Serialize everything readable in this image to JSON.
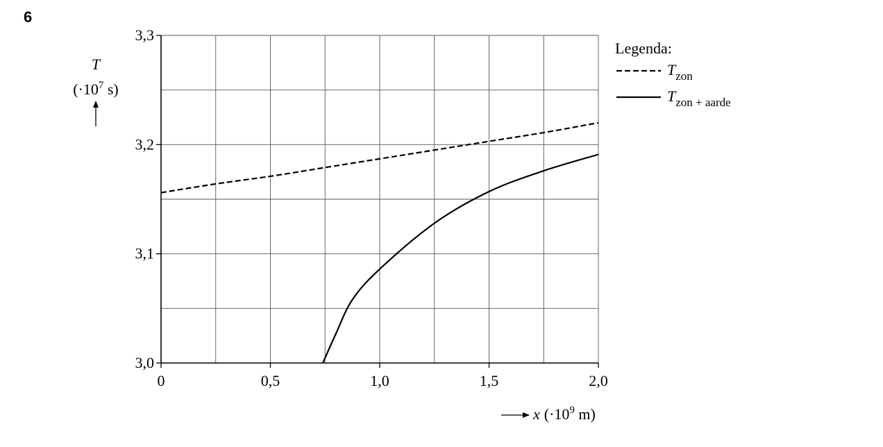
{
  "question_number": "6",
  "chart_data": {
    "type": "line",
    "y_label": {
      "symbol": "T",
      "prefix": "(·10",
      "exponent": "7",
      "unit": " s)"
    },
    "x_label": {
      "symbol": "x",
      "prefix": "(·10",
      "exponent": "9",
      "unit": " m)"
    },
    "legend_title": "Legenda:",
    "xlim": [
      0,
      2.0
    ],
    "ylim": [
      3.0,
      3.3
    ],
    "xticks": [
      0,
      {
        "value": 0.25,
        "label": null
      },
      {
        "value": 0.5,
        "label": "0,5"
      },
      {
        "value": 0.75,
        "label": null
      },
      {
        "value": 1.0,
        "label": "1,0"
      },
      {
        "value": 1.25,
        "label": null
      },
      {
        "value": 1.5,
        "label": "1,5"
      },
      {
        "value": 1.75,
        "label": null
      },
      {
        "value": 2.0,
        "label": "2,0"
      }
    ],
    "yticks": [
      {
        "value": 3.0,
        "label": "3,0"
      },
      {
        "value": 3.05,
        "label": null
      },
      {
        "value": 3.1,
        "label": "3,1"
      },
      {
        "value": 3.15,
        "label": null
      },
      {
        "value": 3.2,
        "label": "3,2"
      },
      {
        "value": 3.25,
        "label": null
      },
      {
        "value": 3.3,
        "label": "3,3"
      }
    ],
    "grid": true,
    "series": [
      {
        "name": "T",
        "name_subscript": "zon",
        "color": "#000000",
        "dashed": true,
        "x": [
          0,
          0.25,
          0.5,
          0.75,
          1.0,
          1.25,
          1.5,
          1.75,
          2.0
        ],
        "values": [
          3.156,
          3.164,
          3.171,
          3.179,
          3.187,
          3.195,
          3.203,
          3.211,
          3.22
        ]
      },
      {
        "name": "T",
        "name_subscript": "zon + aarde",
        "color": "#000000",
        "dashed": false,
        "x": [
          0.74,
          0.8,
          0.875,
          1.0,
          1.25,
          1.5,
          1.75,
          2.0
        ],
        "values": [
          3.0,
          3.027,
          3.058,
          3.086,
          3.128,
          3.157,
          3.176,
          3.191
        ]
      }
    ]
  }
}
